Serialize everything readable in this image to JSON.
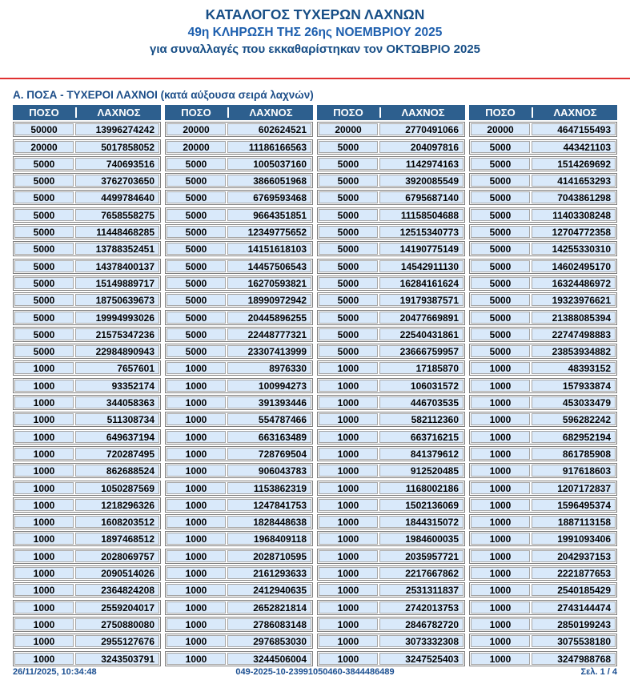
{
  "header": {
    "title_line1": "ΚΑΤΑΛΟΓΟΣ ΤΥΧΕΡΩΝ ΛΑΧΝΩΝ",
    "title_line2": "49η ΚΛΗΡΩΣΗ ΤΗΣ 26ης ΝΟΕΜΒΡΙΟΥ 2025",
    "title_line3": "για συναλλαγές που εκκαθαρίστηκαν τον ΟΚΤΩΒΡΙΟ 2025"
  },
  "section": {
    "title": "Α. ΠΟΣΑ - ΤΥΧΕΡΟΙ ΛΑΧΝΟΙ (κατά αύξουσα σειρά λαχνών)"
  },
  "table": {
    "col_headers": {
      "amount": "ΠΟΣΟ",
      "number": "ΛΑΧΝΟΣ"
    },
    "columns": [
      {
        "rows": [
          {
            "amount": "50000",
            "number": "13996274242"
          },
          {
            "amount": "20000",
            "number": "5017858052"
          },
          {
            "amount": "5000",
            "number": "740693516"
          },
          {
            "amount": "5000",
            "number": "3762703650"
          },
          {
            "amount": "5000",
            "number": "4499784640"
          },
          {
            "amount": "5000",
            "number": "7658558275"
          },
          {
            "amount": "5000",
            "number": "11448468285"
          },
          {
            "amount": "5000",
            "number": "13788352451"
          },
          {
            "amount": "5000",
            "number": "14378400137"
          },
          {
            "amount": "5000",
            "number": "15149889717"
          },
          {
            "amount": "5000",
            "number": "18750639673"
          },
          {
            "amount": "5000",
            "number": "19994993026"
          },
          {
            "amount": "5000",
            "number": "21575347236"
          },
          {
            "amount": "5000",
            "number": "22984890943"
          },
          {
            "amount": "1000",
            "number": "7657601"
          },
          {
            "amount": "1000",
            "number": "93352174"
          },
          {
            "amount": "1000",
            "number": "344058363"
          },
          {
            "amount": "1000",
            "number": "511308734"
          },
          {
            "amount": "1000",
            "number": "649637194"
          },
          {
            "amount": "1000",
            "number": "720287495"
          },
          {
            "amount": "1000",
            "number": "862688524"
          },
          {
            "amount": "1000",
            "number": "1050287569"
          },
          {
            "amount": "1000",
            "number": "1218296326"
          },
          {
            "amount": "1000",
            "number": "1608203512"
          },
          {
            "amount": "1000",
            "number": "1897468512"
          },
          {
            "amount": "1000",
            "number": "2028069757"
          },
          {
            "amount": "1000",
            "number": "2090514026"
          },
          {
            "amount": "1000",
            "number": "2364824208"
          },
          {
            "amount": "1000",
            "number": "2559204017"
          },
          {
            "amount": "1000",
            "number": "2750880080"
          },
          {
            "amount": "1000",
            "number": "2955127676"
          },
          {
            "amount": "1000",
            "number": "3243503791"
          }
        ]
      },
      {
        "rows": [
          {
            "amount": "20000",
            "number": "602624521"
          },
          {
            "amount": "20000",
            "number": "11186166563"
          },
          {
            "amount": "5000",
            "number": "1005037160"
          },
          {
            "amount": "5000",
            "number": "3866051968"
          },
          {
            "amount": "5000",
            "number": "6769593468"
          },
          {
            "amount": "5000",
            "number": "9664351851"
          },
          {
            "amount": "5000",
            "number": "12349775652"
          },
          {
            "amount": "5000",
            "number": "14151618103"
          },
          {
            "amount": "5000",
            "number": "14457506543"
          },
          {
            "amount": "5000",
            "number": "16270593821"
          },
          {
            "amount": "5000",
            "number": "18990972942"
          },
          {
            "amount": "5000",
            "number": "20445896255"
          },
          {
            "amount": "5000",
            "number": "22448777321"
          },
          {
            "amount": "5000",
            "number": "23307413999"
          },
          {
            "amount": "1000",
            "number": "8976330"
          },
          {
            "amount": "1000",
            "number": "100994273"
          },
          {
            "amount": "1000",
            "number": "391393446"
          },
          {
            "amount": "1000",
            "number": "554787466"
          },
          {
            "amount": "1000",
            "number": "663163489"
          },
          {
            "amount": "1000",
            "number": "728769504"
          },
          {
            "amount": "1000",
            "number": "906043783"
          },
          {
            "amount": "1000",
            "number": "1153862319"
          },
          {
            "amount": "1000",
            "number": "1247841753"
          },
          {
            "amount": "1000",
            "number": "1828448638"
          },
          {
            "amount": "1000",
            "number": "1968409118"
          },
          {
            "amount": "1000",
            "number": "2028710595"
          },
          {
            "amount": "1000",
            "number": "2161293633"
          },
          {
            "amount": "1000",
            "number": "2412940635"
          },
          {
            "amount": "1000",
            "number": "2652821814"
          },
          {
            "amount": "1000",
            "number": "2786083148"
          },
          {
            "amount": "1000",
            "number": "2976853030"
          },
          {
            "amount": "1000",
            "number": "3244506004"
          }
        ]
      },
      {
        "rows": [
          {
            "amount": "20000",
            "number": "2770491066"
          },
          {
            "amount": "5000",
            "number": "204097816"
          },
          {
            "amount": "5000",
            "number": "1142974163"
          },
          {
            "amount": "5000",
            "number": "3920085549"
          },
          {
            "amount": "5000",
            "number": "6795687140"
          },
          {
            "amount": "5000",
            "number": "11158504688"
          },
          {
            "amount": "5000",
            "number": "12515340773"
          },
          {
            "amount": "5000",
            "number": "14190775149"
          },
          {
            "amount": "5000",
            "number": "14542911130"
          },
          {
            "amount": "5000",
            "number": "16284161624"
          },
          {
            "amount": "5000",
            "number": "19179387571"
          },
          {
            "amount": "5000",
            "number": "20477669891"
          },
          {
            "amount": "5000",
            "number": "22540431861"
          },
          {
            "amount": "5000",
            "number": "23666759957"
          },
          {
            "amount": "1000",
            "number": "17185870"
          },
          {
            "amount": "1000",
            "number": "106031572"
          },
          {
            "amount": "1000",
            "number": "446703535"
          },
          {
            "amount": "1000",
            "number": "582112360"
          },
          {
            "amount": "1000",
            "number": "663716215"
          },
          {
            "amount": "1000",
            "number": "841379612"
          },
          {
            "amount": "1000",
            "number": "912520485"
          },
          {
            "amount": "1000",
            "number": "1168002186"
          },
          {
            "amount": "1000",
            "number": "1502136069"
          },
          {
            "amount": "1000",
            "number": "1844315072"
          },
          {
            "amount": "1000",
            "number": "1984600035"
          },
          {
            "amount": "1000",
            "number": "2035957721"
          },
          {
            "amount": "1000",
            "number": "2217667862"
          },
          {
            "amount": "1000",
            "number": "2531311837"
          },
          {
            "amount": "1000",
            "number": "2742013753"
          },
          {
            "amount": "1000",
            "number": "2846782720"
          },
          {
            "amount": "1000",
            "number": "3073332308"
          },
          {
            "amount": "1000",
            "number": "3247525403"
          }
        ]
      },
      {
        "rows": [
          {
            "amount": "20000",
            "number": "4647155493"
          },
          {
            "amount": "5000",
            "number": "443421103"
          },
          {
            "amount": "5000",
            "number": "1514269692"
          },
          {
            "amount": "5000",
            "number": "4141653293"
          },
          {
            "amount": "5000",
            "number": "7043861298"
          },
          {
            "amount": "5000",
            "number": "11403308248"
          },
          {
            "amount": "5000",
            "number": "12704772358"
          },
          {
            "amount": "5000",
            "number": "14255330310"
          },
          {
            "amount": "5000",
            "number": "14602495170"
          },
          {
            "amount": "5000",
            "number": "16324486972"
          },
          {
            "amount": "5000",
            "number": "19323976621"
          },
          {
            "amount": "5000",
            "number": "21388085394"
          },
          {
            "amount": "5000",
            "number": "22747498883"
          },
          {
            "amount": "5000",
            "number": "23853934882"
          },
          {
            "amount": "1000",
            "number": "48393152"
          },
          {
            "amount": "1000",
            "number": "157933874"
          },
          {
            "amount": "1000",
            "number": "453033479"
          },
          {
            "amount": "1000",
            "number": "596282242"
          },
          {
            "amount": "1000",
            "number": "682952194"
          },
          {
            "amount": "1000",
            "number": "861785908"
          },
          {
            "amount": "1000",
            "number": "917618603"
          },
          {
            "amount": "1000",
            "number": "1207172837"
          },
          {
            "amount": "1000",
            "number": "1596495374"
          },
          {
            "amount": "1000",
            "number": "1887113158"
          },
          {
            "amount": "1000",
            "number": "1991093406"
          },
          {
            "amount": "1000",
            "number": "2042937153"
          },
          {
            "amount": "1000",
            "number": "2221877653"
          },
          {
            "amount": "1000",
            "number": "2540185429"
          },
          {
            "amount": "1000",
            "number": "2743144474"
          },
          {
            "amount": "1000",
            "number": "2850199243"
          },
          {
            "amount": "1000",
            "number": "3075538180"
          },
          {
            "amount": "1000",
            "number": "3247988768"
          }
        ]
      }
    ]
  },
  "footer": {
    "timestamp": "26/11/2025, 10:34:48",
    "document_code": "049-2025-10-23991050460-3844486489",
    "page_label": "Σελ. 1 / 4"
  },
  "colors": {
    "title_navy": "#174e86",
    "title_blue": "#1d5fae",
    "header_bar_blue": "#2d5f8e",
    "cell_background": "#d9e9fa",
    "divider_red": "#e03131",
    "footer_blue": "#1b4f91"
  }
}
